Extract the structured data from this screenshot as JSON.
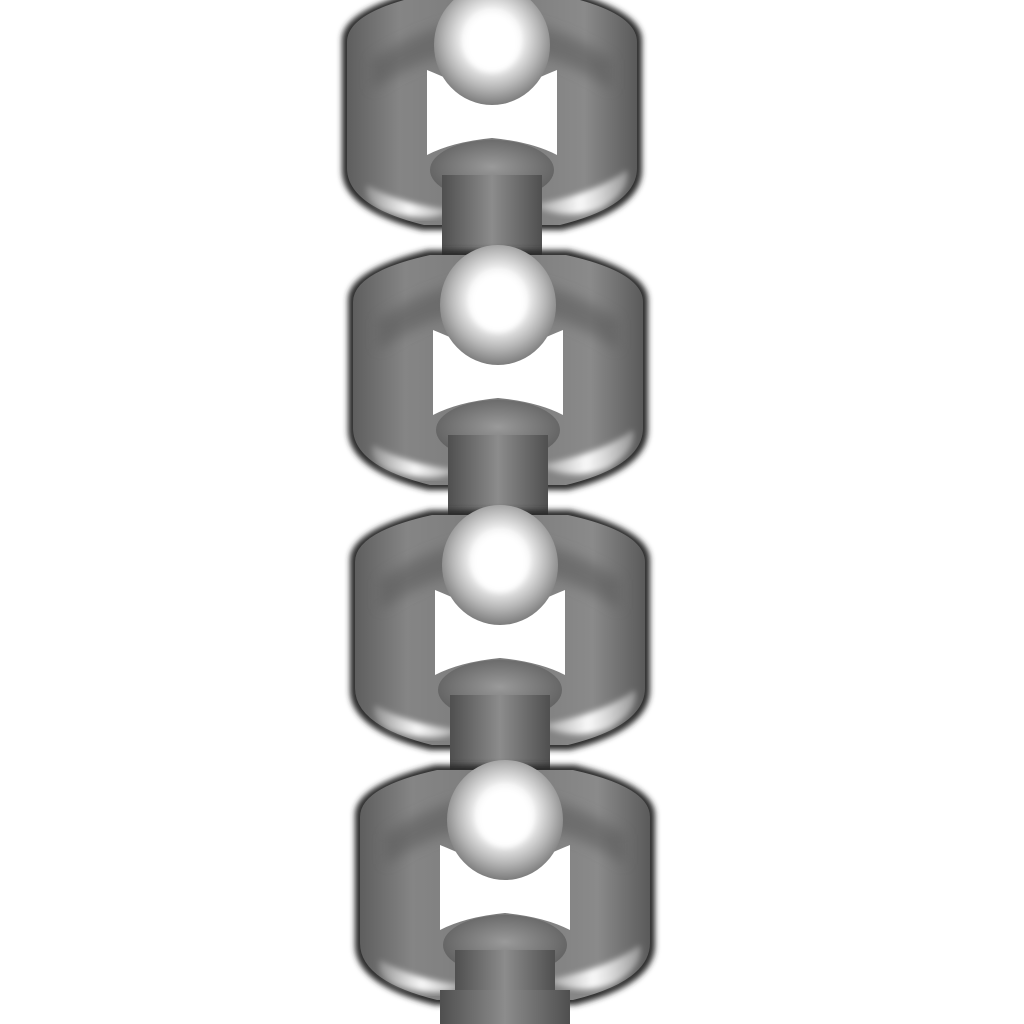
{
  "image": {
    "subject": "chain-links",
    "link_count": 4,
    "colors": {
      "background": "#ffffff",
      "link_mid": "#7c7c7c",
      "link_dark": "#4a4a4a",
      "link_light": "#a0a0a0",
      "highlight": "#ffffff",
      "shadow": "#1e1e1e"
    }
  }
}
